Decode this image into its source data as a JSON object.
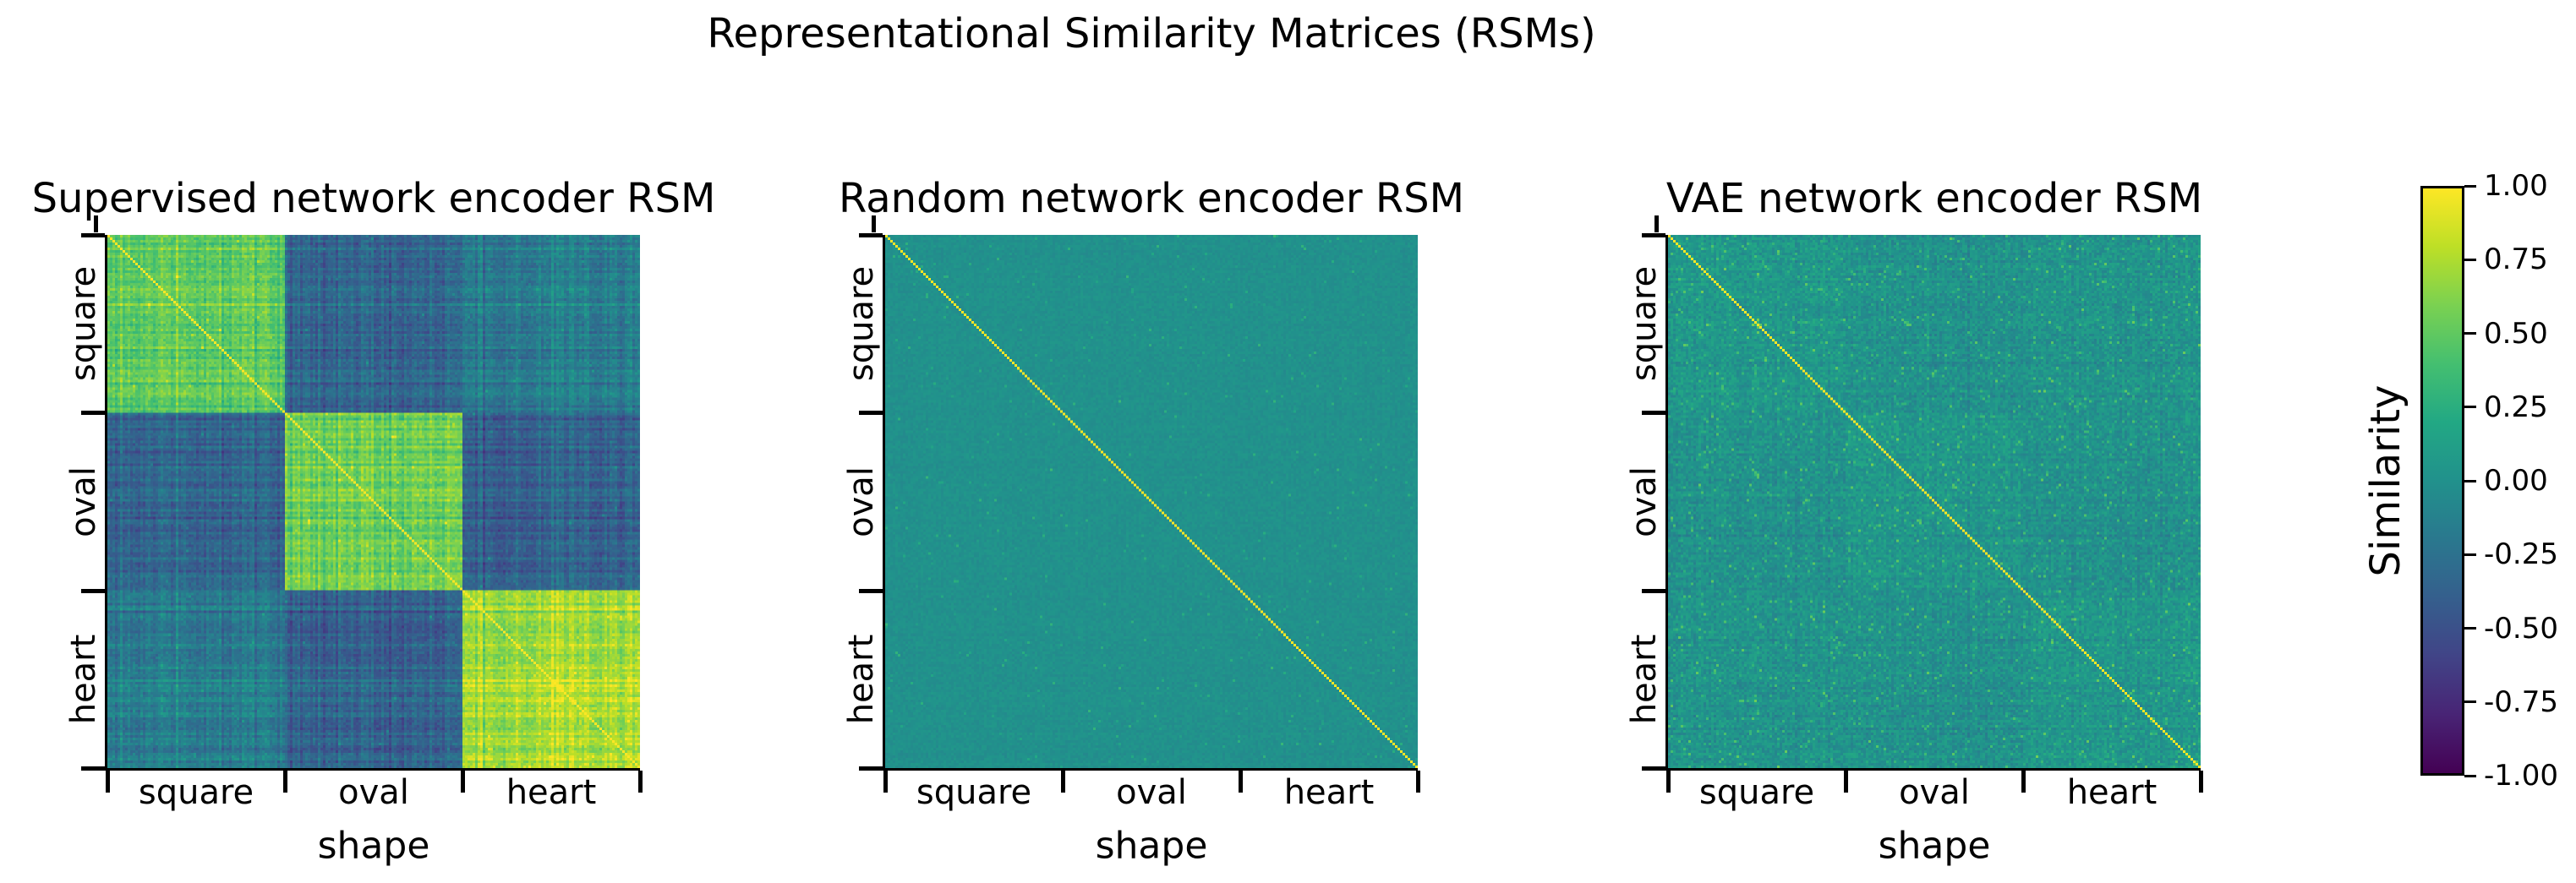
{
  "figure": {
    "title": "Representational Similarity Matrices (RSMs)",
    "background_color": "#ffffff",
    "text_color": "#000000",
    "axis_color": "#000000"
  },
  "chart_data": {
    "type": "heatmap",
    "colormap": "viridis",
    "vmin": -1.0,
    "vmax": 1.0,
    "grid": false,
    "categories": [
      "square",
      "oval",
      "heart"
    ],
    "xlabel": "shape",
    "matrix_cells_per_axis": 210,
    "panels": [
      {
        "title": "Supervised network encoder RSM",
        "block_means": [
          [
            0.52,
            -0.33,
            -0.16
          ],
          [
            -0.33,
            0.58,
            -0.36
          ],
          [
            -0.16,
            -0.36,
            0.74
          ]
        ],
        "diagonal_value": 1.0,
        "stripe_amp": 0.15,
        "noise_amp": 0.1,
        "outlier_rate": 0.015,
        "outlier_amp": 0.25,
        "seed": 11
      },
      {
        "title": "Random network encoder RSM",
        "block_means": [
          [
            0.0,
            0.0,
            0.0
          ],
          [
            0.0,
            0.0,
            0.0
          ],
          [
            0.0,
            0.0,
            0.0
          ]
        ],
        "diagonal_value": 1.0,
        "stripe_amp": 0.012,
        "noise_amp": 0.05,
        "outlier_rate": 0.012,
        "outlier_amp": 0.3,
        "seed": 22
      },
      {
        "title": "VAE network encoder RSM",
        "block_means": [
          [
            0.05,
            0.0,
            0.02
          ],
          [
            0.0,
            0.04,
            0.0
          ],
          [
            0.02,
            0.0,
            0.05
          ]
        ],
        "diagonal_value": 1.0,
        "stripe_amp": 0.05,
        "noise_amp": 0.12,
        "outlier_rate": 0.07,
        "outlier_amp": 0.4,
        "seed": 33
      }
    ],
    "colorbar": {
      "label": "Similarity",
      "tick_labels": [
        "1.00",
        "0.75",
        "0.50",
        "0.25",
        "0.00",
        "-0.25",
        "-0.50",
        "-0.75",
        "-1.00"
      ],
      "colormap_stops": [
        "#440154",
        "#482475",
        "#414487",
        "#355f8d",
        "#2a788e",
        "#21918c",
        "#22a884",
        "#44bf70",
        "#7ad151",
        "#bddf26",
        "#fde725"
      ]
    }
  }
}
